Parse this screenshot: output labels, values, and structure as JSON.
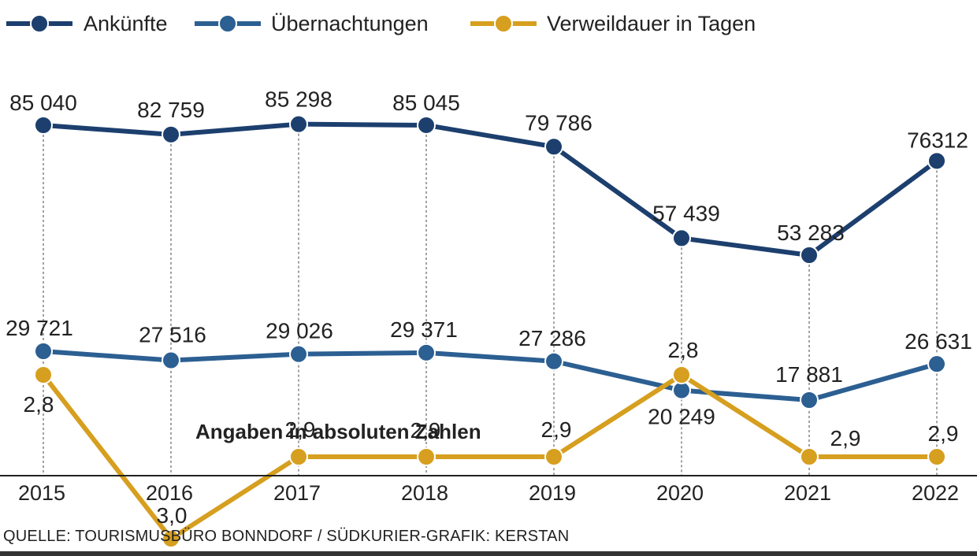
{
  "colors": {
    "ankuenfte": "#1c3f6e",
    "uebernachtungen": "#2c5f92",
    "verweildauer": "#d69f1f",
    "grid": "#444444",
    "axis": "#222222"
  },
  "note": "Angaben in absoluten Zahlen",
  "source": "QUELLE: TOURISMUSBÜRO BONNDORF / SÜDKURIER-GRAFIK: KERSTAN",
  "chart_data": {
    "type": "line",
    "title": "",
    "xlabel": "",
    "ylabel": "",
    "grid": "vertical dashed lines at each year",
    "legend_position": "top-left",
    "categories": [
      "2015",
      "2016",
      "2017",
      "2018",
      "2019",
      "2020",
      "2021",
      "2022"
    ],
    "series": [
      {
        "name": "Ankünfte",
        "values": [
          85040,
          82759,
          85298,
          85045,
          79786,
          57439,
          53283,
          76312
        ],
        "labels": [
          "85 040",
          "82 759",
          "85 298",
          "85 045",
          "79 786",
          "57 439",
          "53 283",
          "76312"
        ]
      },
      {
        "name": "Übernachtungen",
        "values": [
          29721,
          27516,
          29026,
          29371,
          27286,
          20249,
          17881,
          26631
        ],
        "labels": [
          "29 721",
          "27 516",
          "29 026",
          "29 371",
          "27 286",
          "20 249",
          "17 881",
          "26 631"
        ]
      },
      {
        "name": "Verweildauer in Tagen",
        "values": [
          2.8,
          3.0,
          2.9,
          2.9,
          2.9,
          2.8,
          2.9,
          2.9
        ],
        "labels": [
          "2,8",
          "3,0",
          "2,9",
          "2,9",
          "2,9",
          "2,8",
          "2,9",
          "2,9"
        ]
      }
    ]
  }
}
